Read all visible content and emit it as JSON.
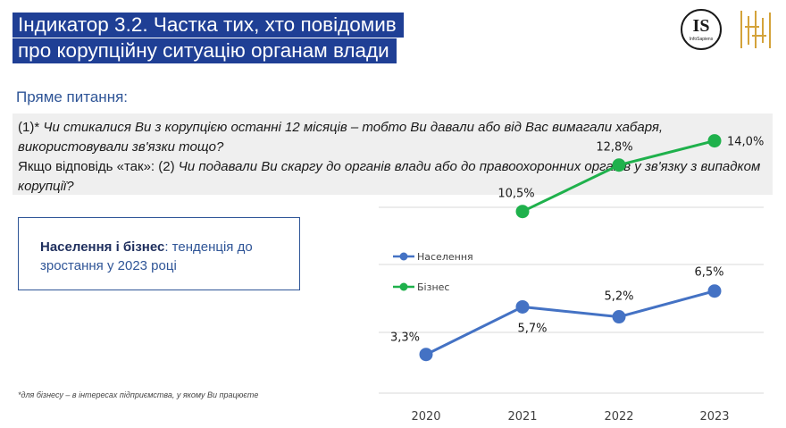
{
  "header": {
    "title_line1": "Індикатор 3.2. Частка тих, хто повідомив",
    "title_line2": "про корупційну ситуацію органам влади",
    "logo_text": "IS",
    "logo_subtext": "InfoSapiens"
  },
  "subtitle": "Пряме питання:",
  "question": {
    "q1_prefix": "(1)* ",
    "q1_text": "Чи стикалися Ви з корупцією останні 12 місяців – тобто Ви давали або від Вас вимагали хабаря, використовували зв'язки тощо?",
    "q2_prefix": "Якщо відповідь «так»:  (2) ",
    "q2_text": "Чи подавали Ви скаргу до органів влади або до правоохоронних органів у зв'язку з випадком корупції?"
  },
  "info_box": {
    "bold": "Населення і бізнес",
    "rest": ": тенденція до зростання у 2023 році"
  },
  "footnote": "*для бізнесу – в інтересах підприємства, у якому Ви працюєте",
  "colors": {
    "title_bg": "#1f3f95",
    "population": "#4472c4",
    "business": "#1fb14c"
  },
  "chart_data": {
    "type": "line",
    "x": [
      "2020",
      "2021",
      "2022",
      "2023"
    ],
    "series": [
      {
        "name": "Населення",
        "values": [
          3.3,
          5.7,
          5.2,
          6.5
        ],
        "labels": [
          "3,3%",
          "5,7%",
          "5,2%",
          "6,5%"
        ],
        "color": "#4472c4"
      },
      {
        "name": "Бізнес",
        "values": [
          null,
          10.5,
          12.8,
          14.0
        ],
        "labels": [
          "",
          "10,5%",
          "12,8%",
          "14,0%"
        ],
        "color": "#1fb14c"
      }
    ],
    "legend": "left",
    "grid": true
  }
}
